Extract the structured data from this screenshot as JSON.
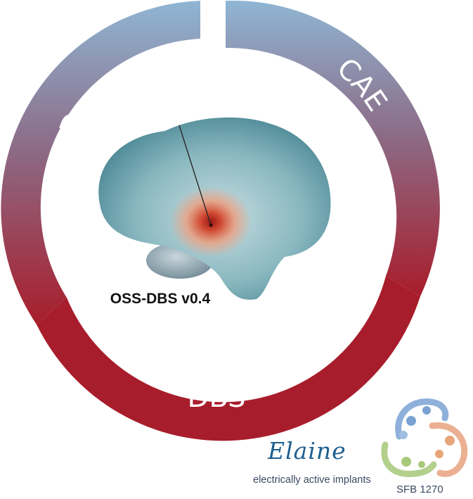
{
  "ring": {
    "segments": [
      {
        "label": "CAD"
      },
      {
        "label": "CAE"
      },
      {
        "label": "DBS"
      }
    ],
    "colors": {
      "top": "#8fb5d3",
      "bottom": "#a81d2b"
    }
  },
  "center": {
    "title": "OSS-DBS v0.4"
  },
  "logo": {
    "name": "Elaine",
    "tagline": "electrically active implants",
    "project": "SFB 1270",
    "colors": {
      "blue": "#7aa3d1",
      "orange": "#e8a57a",
      "green": "#a9c97a"
    }
  }
}
